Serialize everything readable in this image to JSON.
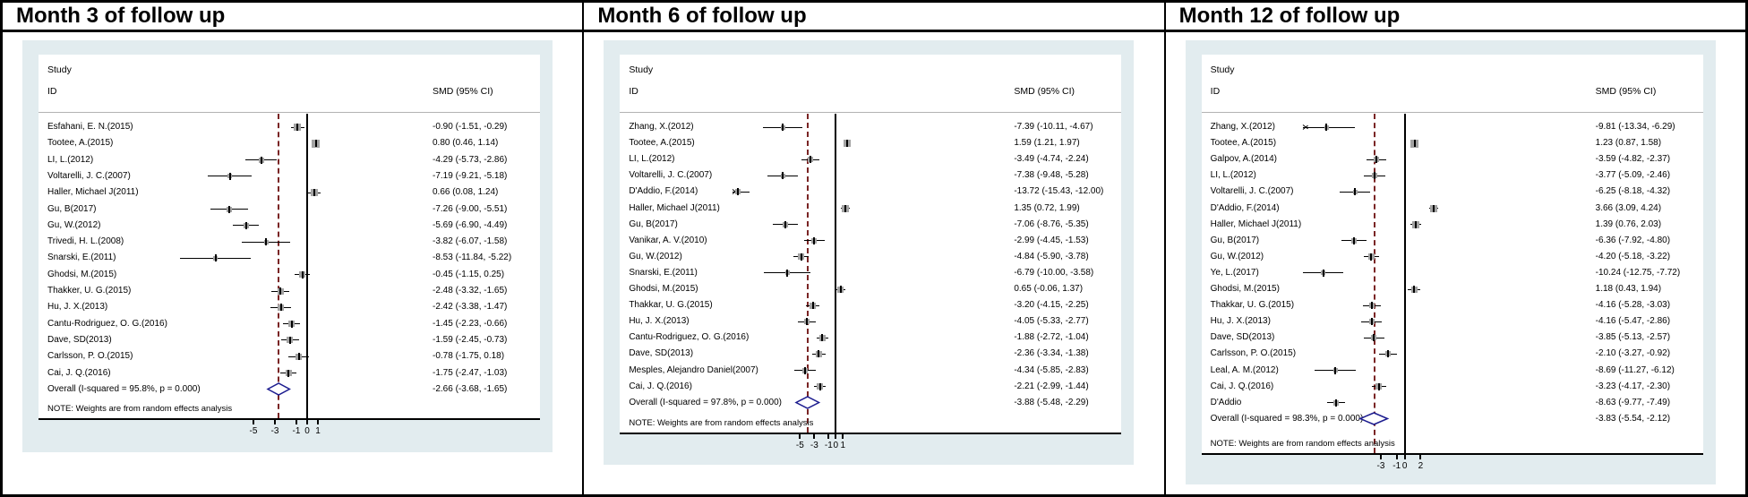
{
  "chart_data": [
    {
      "type": "forest",
      "title": "Month 3 of follow up",
      "col_header_line1": "Study",
      "col_header_line2": "ID",
      "value_header": "SMD (95% CI)",
      "note": "NOTE: Weights are from random effects analysis",
      "axis_ticks": [
        -5,
        -3,
        -1,
        0,
        1
      ],
      "studies": [
        {
          "id": "Esfahani, E. N.(2015)",
          "est": -0.9,
          "lo": -1.51,
          "hi": -0.29,
          "label": "-0.90 (-1.51, -0.29)"
        },
        {
          "id": "Tootee, A.(2015)",
          "est": 0.8,
          "lo": 0.46,
          "hi": 1.14,
          "label": "0.80 (0.46, 1.14)"
        },
        {
          "id": "LI, L.(2012)",
          "est": -4.29,
          "lo": -5.73,
          "hi": -2.86,
          "label": "-4.29 (-5.73, -2.86)"
        },
        {
          "id": "Voltarelli, J. C.(2007)",
          "est": -7.19,
          "lo": -9.21,
          "hi": -5.18,
          "label": "-7.19 (-9.21, -5.18)"
        },
        {
          "id": "Haller, Michael J(2011)",
          "est": 0.66,
          "lo": 0.08,
          "hi": 1.24,
          "label": "0.66 (0.08, 1.24)"
        },
        {
          "id": "Gu, B(2017)",
          "est": -7.26,
          "lo": -9.0,
          "hi": -5.51,
          "label": "-7.26 (-9.00, -5.51)"
        },
        {
          "id": "Gu, W.(2012)",
          "est": -5.69,
          "lo": -6.9,
          "hi": -4.49,
          "label": "-5.69 (-6.90, -4.49)"
        },
        {
          "id": "Trivedi, H. L.(2008)",
          "est": -3.82,
          "lo": -6.07,
          "hi": -1.58,
          "label": "-3.82 (-6.07, -1.58)"
        },
        {
          "id": "Snarski, E.(2011)",
          "est": -8.53,
          "lo": -11.84,
          "hi": -5.22,
          "label": "-8.53 (-11.84, -5.22)"
        },
        {
          "id": "Ghodsi, M.(2015)",
          "est": -0.45,
          "lo": -1.15,
          "hi": 0.25,
          "label": "-0.45 (-1.15, 0.25)"
        },
        {
          "id": "Thakker, U. G.(2015)",
          "est": -2.48,
          "lo": -3.32,
          "hi": -1.65,
          "label": "-2.48 (-3.32, -1.65)"
        },
        {
          "id": "Hu, J. X.(2013)",
          "est": -2.42,
          "lo": -3.38,
          "hi": -1.47,
          "label": "-2.42 (-3.38, -1.47)"
        },
        {
          "id": "Cantu-Rodriguez, O. G.(2016)",
          "est": -1.45,
          "lo": -2.23,
          "hi": -0.66,
          "label": "-1.45 (-2.23, -0.66)"
        },
        {
          "id": "Dave, SD(2013)",
          "est": -1.59,
          "lo": -2.45,
          "hi": -0.73,
          "label": "-1.59 (-2.45, -0.73)"
        },
        {
          "id": "Carlsson, P. O.(2015)",
          "est": -0.78,
          "lo": -1.75,
          "hi": 0.18,
          "label": "-0.78 (-1.75, 0.18)"
        },
        {
          "id": "Cai, J. Q.(2016)",
          "est": -1.75,
          "lo": -2.47,
          "hi": -1.03,
          "label": "-1.75 (-2.47, -1.03)"
        }
      ],
      "overall": {
        "id": "Overall  (I-squared = 95.8%, p = 0.000)",
        "est": -2.66,
        "lo": -3.68,
        "hi": -1.65,
        "label": "-2.66 (-3.68, -1.65)"
      }
    },
    {
      "type": "forest",
      "title": "Month 6 of follow up",
      "col_header_line1": "Study",
      "col_header_line2": "ID",
      "value_header": "SMD (95% CI)",
      "note": "NOTE: Weights are from random effects analysis",
      "axis_ticks": [
        -5,
        -3,
        -1,
        0,
        1
      ],
      "studies": [
        {
          "id": "Zhang, X.(2012)",
          "est": -7.39,
          "lo": -10.11,
          "hi": -4.67,
          "label": "-7.39 (-10.11, -4.67)"
        },
        {
          "id": "Tootee, A.(2015)",
          "est": 1.59,
          "lo": 1.21,
          "hi": 1.97,
          "label": "1.59 (1.21, 1.97)"
        },
        {
          "id": "LI, L.(2012)",
          "est": -3.49,
          "lo": -4.74,
          "hi": -2.24,
          "label": "-3.49 (-4.74, -2.24)"
        },
        {
          "id": "Voltarelli, J. C.(2007)",
          "est": -7.38,
          "lo": -9.48,
          "hi": -5.28,
          "label": "-7.38 (-9.48, -5.28)"
        },
        {
          "id": "D'Addio, F.(2014)",
          "est": -13.72,
          "lo": -15.43,
          "hi": -12.0,
          "label": "-13.72 (-15.43, -12.00)"
        },
        {
          "id": "Haller, Michael J(2011)",
          "est": 1.35,
          "lo": 0.72,
          "hi": 1.99,
          "label": "1.35 (0.72, 1.99)"
        },
        {
          "id": "Gu, B(2017)",
          "est": -7.06,
          "lo": -8.76,
          "hi": -5.35,
          "label": "-7.06 (-8.76, -5.35)"
        },
        {
          "id": "Vanikar, A. V.(2010)",
          "est": -2.99,
          "lo": -4.45,
          "hi": -1.53,
          "label": "-2.99 (-4.45, -1.53)"
        },
        {
          "id": "Gu, W.(2012)",
          "est": -4.84,
          "lo": -5.9,
          "hi": -3.78,
          "label": "-4.84 (-5.90, -3.78)"
        },
        {
          "id": "Snarski, E.(2011)",
          "est": -6.79,
          "lo": -10.0,
          "hi": -3.58,
          "label": "-6.79 (-10.00, -3.58)"
        },
        {
          "id": "Ghodsi, M.(2015)",
          "est": 0.65,
          "lo": -0.06,
          "hi": 1.37,
          "label": "0.65 (-0.06, 1.37)"
        },
        {
          "id": "Thakkar, U. G.(2015)",
          "est": -3.2,
          "lo": -4.15,
          "hi": -2.25,
          "label": "-3.20 (-4.15, -2.25)"
        },
        {
          "id": "Hu, J. X.(2013)",
          "est": -4.05,
          "lo": -5.33,
          "hi": -2.77,
          "label": "-4.05 (-5.33, -2.77)"
        },
        {
          "id": "Cantu-Rodriguez, O. G.(2016)",
          "est": -1.88,
          "lo": -2.72,
          "hi": -1.04,
          "label": "-1.88 (-2.72, -1.04)"
        },
        {
          "id": "Dave, SD(2013)",
          "est": -2.36,
          "lo": -3.34,
          "hi": -1.38,
          "label": "-2.36 (-3.34, -1.38)"
        },
        {
          "id": "Mesples, Alejandro Daniel(2007)",
          "est": -4.34,
          "lo": -5.85,
          "hi": -2.83,
          "label": "-4.34 (-5.85, -2.83)"
        },
        {
          "id": "Cai, J. Q.(2016)",
          "est": -2.21,
          "lo": -2.99,
          "hi": -1.44,
          "label": "-2.21 (-2.99, -1.44)"
        }
      ],
      "overall": {
        "id": "Overall  (I-squared = 97.8%, p = 0.000)",
        "est": -3.88,
        "lo": -5.48,
        "hi": -2.29,
        "label": "-3.88 (-5.48, -2.29)"
      }
    },
    {
      "type": "forest",
      "title": "Month 12 of follow up",
      "col_header_line1": "Study",
      "col_header_line2": "ID",
      "value_header": "SMD (95% CI)",
      "note": "NOTE: Weights are from random effects analysis",
      "axis_ticks": [
        -3,
        -1,
        0,
        2
      ],
      "studies": [
        {
          "id": "Zhang, X.(2012)",
          "est": -9.81,
          "lo": -13.34,
          "hi": -6.29,
          "label": "-9.81 (-13.34, -6.29)"
        },
        {
          "id": "Tootee, A.(2015)",
          "est": 1.23,
          "lo": 0.87,
          "hi": 1.58,
          "label": "1.23 (0.87, 1.58)"
        },
        {
          "id": "Galpov, A.(2014)",
          "est": -3.59,
          "lo": -4.82,
          "hi": -2.37,
          "label": "-3.59 (-4.82, -2.37)"
        },
        {
          "id": "LI, L.(2012)",
          "est": -3.77,
          "lo": -5.09,
          "hi": -2.46,
          "label": "-3.77 (-5.09, -2.46)"
        },
        {
          "id": "Voltarelli, J. C.(2007)",
          "est": -6.25,
          "lo": -8.18,
          "hi": -4.32,
          "label": "-6.25 (-8.18, -4.32)"
        },
        {
          "id": "D'Addio, F.(2014)",
          "est": 3.66,
          "lo": 3.09,
          "hi": 4.24,
          "label": "3.66 (3.09, 4.24)"
        },
        {
          "id": "Haller, Michael J(2011)",
          "est": 1.39,
          "lo": 0.76,
          "hi": 2.03,
          "label": "1.39 (0.76, 2.03)"
        },
        {
          "id": "Gu, B(2017)",
          "est": -6.36,
          "lo": -7.92,
          "hi": -4.8,
          "label": "-6.36 (-7.92, -4.80)"
        },
        {
          "id": "Gu, W.(2012)",
          "est": -4.2,
          "lo": -5.18,
          "hi": -3.22,
          "label": "-4.20 (-5.18, -3.22)"
        },
        {
          "id": "Ye, L.(2017)",
          "est": -10.24,
          "lo": -12.75,
          "hi": -7.72,
          "label": "-10.24 (-12.75, -7.72)"
        },
        {
          "id": "Ghodsi, M.(2015)",
          "est": 1.18,
          "lo": 0.43,
          "hi": 1.94,
          "label": "1.18 (0.43, 1.94)"
        },
        {
          "id": "Thakkar, U. G.(2015)",
          "est": -4.16,
          "lo": -5.28,
          "hi": -3.03,
          "label": "-4.16 (-5.28, -3.03)"
        },
        {
          "id": "Hu, J. X.(2013)",
          "est": -4.16,
          "lo": -5.47,
          "hi": -2.86,
          "label": "-4.16 (-5.47, -2.86)"
        },
        {
          "id": "Dave, SD(2013)",
          "est": -3.85,
          "lo": -5.13,
          "hi": -2.57,
          "label": "-3.85 (-5.13, -2.57)"
        },
        {
          "id": "Carlsson, P. O.(2015)",
          "est": -2.1,
          "lo": -3.27,
          "hi": -0.92,
          "label": "-2.10 (-3.27, -0.92)"
        },
        {
          "id": "Leal, A. M.(2012)",
          "est": -8.69,
          "lo": -11.27,
          "hi": -6.12,
          "label": "-8.69 (-11.27, -6.12)"
        },
        {
          "id": "Cai, J. Q.(2016)",
          "est": -3.23,
          "lo": -4.17,
          "hi": -2.3,
          "label": "-3.23 (-4.17, -2.30)"
        },
        {
          "id": "D'Addio",
          "est": -8.63,
          "lo": -9.77,
          "hi": -7.49,
          "label": "-8.63 (-9.77, -7.49)"
        }
      ],
      "overall": {
        "id": "Overall  (I-squared = 98.3%, p = 0.000)",
        "est": -3.83,
        "lo": -5.54,
        "hi": -2.12,
        "label": "-3.83 (-5.54, -2.12)"
      }
    }
  ],
  "colors": {
    "graph_background": "#e2ecef",
    "overall_dashed_line": "#7a2525",
    "diamond_outline": "#1c1c8f",
    "weight_square": "#a3a3a3"
  }
}
